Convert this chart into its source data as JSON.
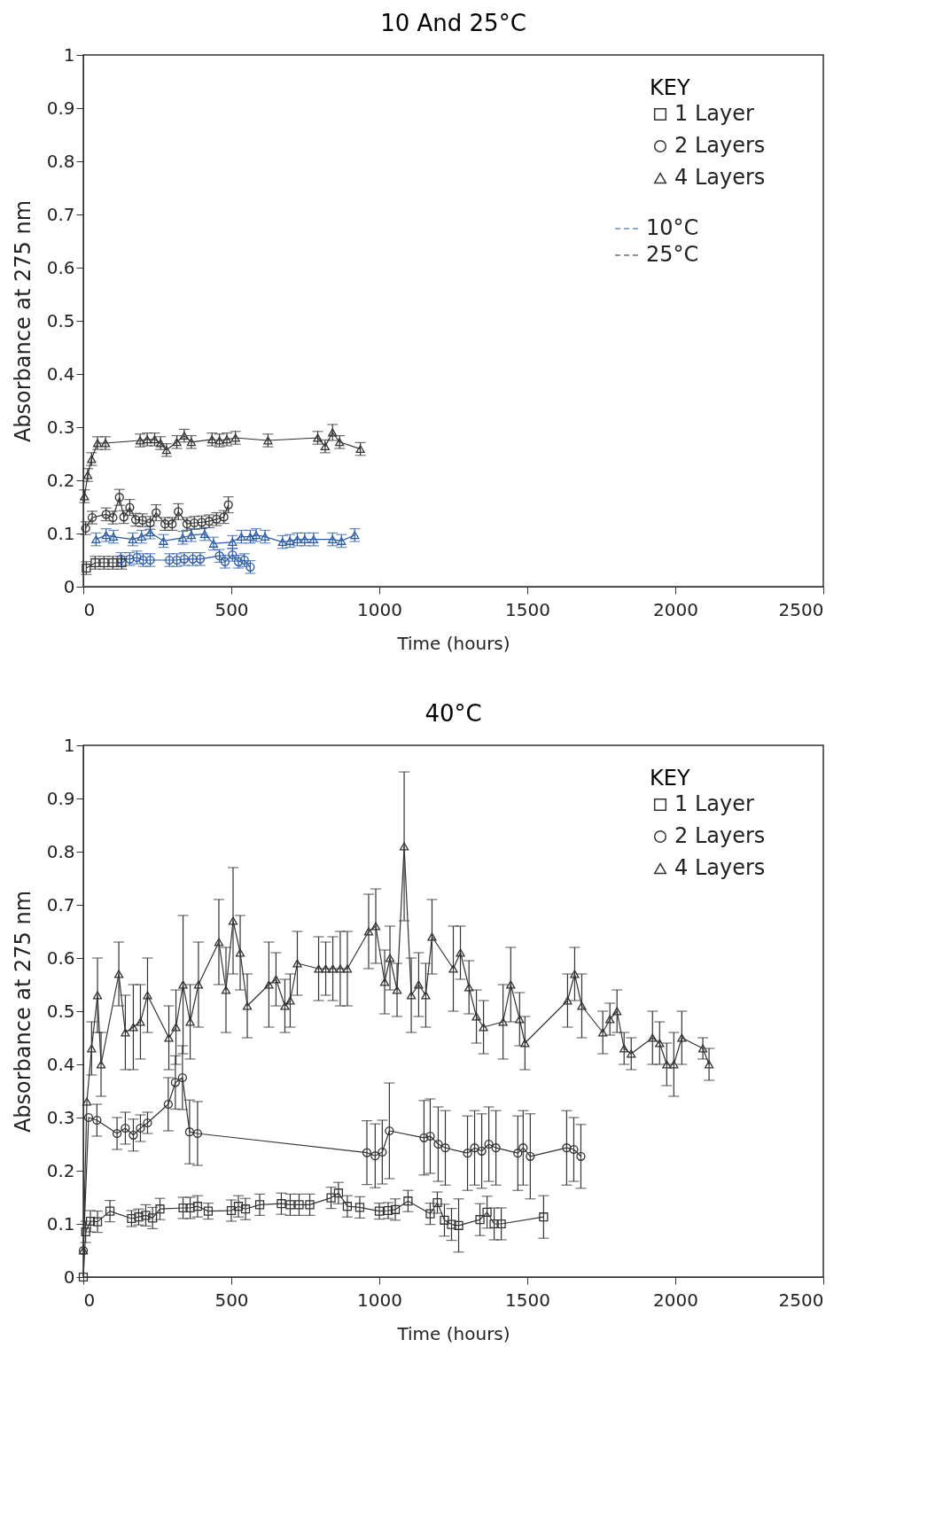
{
  "chart_data": [
    {
      "type": "line",
      "title": "10 And 25°C",
      "xlabel": "Time (hours)",
      "ylabel": "Absorbance at 275 nm",
      "legend_title": "KEY",
      "legend": "top right",
      "annotations": [
        "10°C",
        "25°C"
      ],
      "xlim": [
        0,
        2500
      ],
      "xticks": [
        0,
        500,
        1000,
        1500,
        2000,
        2500
      ],
      "ylim": [
        0,
        1
      ],
      "yticks": [
        0,
        0.1,
        0.2,
        0.3,
        0.4,
        0.5,
        0.6,
        0.7,
        0.8,
        0.9,
        1
      ],
      "grid": false,
      "line_style": "solid",
      "series": [
        {
          "color": "#2b5ca8",
          "marker": "circle",
          "x": [
            127,
            157,
            181,
            202,
            226,
            291,
            316,
            341,
            370,
            395,
            460,
            479,
            504,
            524,
            544,
            564
          ],
          "values": [
            0.052,
            0.052,
            0.055,
            0.05,
            0.05,
            0.05,
            0.05,
            0.052,
            0.052,
            0.052,
            0.058,
            0.047,
            0.06,
            0.047,
            0.05,
            0.037
          ],
          "errors": [
            0.012,
            0.012,
            0.012,
            0.012,
            0.012,
            0.012,
            0.012,
            0.012,
            0.012,
            0.012,
            0.012,
            0.012,
            0.012,
            0.012,
            0.012,
            0.012
          ]
        },
        {
          "color": "#2b5ca8",
          "marker": "triangle",
          "x": [
            43,
            77,
            102,
            167,
            197,
            226,
            271,
            336,
            365,
            410,
            440,
            504,
            534,
            564,
            584,
            614,
            673,
            698,
            723,
            748,
            778,
            842,
            872,
            917
          ],
          "values": [
            0.089,
            0.097,
            0.094,
            0.089,
            0.094,
            0.102,
            0.086,
            0.092,
            0.097,
            0.099,
            0.081,
            0.084,
            0.094,
            0.094,
            0.097,
            0.094,
            0.084,
            0.086,
            0.089,
            0.089,
            0.089,
            0.089,
            0.086,
            0.097
          ],
          "errors": [
            0.012,
            0.012,
            0.012,
            0.012,
            0.012,
            0.012,
            0.012,
            0.012,
            0.012,
            0.012,
            0.012,
            0.012,
            0.012,
            0.012,
            0.012,
            0.012,
            0.012,
            0.012,
            0.012,
            0.012,
            0.012,
            0.012,
            0.012,
            0.012
          ]
        },
        {
          "name": "1 Layer",
          "color": "#333333",
          "marker": "square",
          "x": [
            10,
            40,
            70,
            100,
            130
          ],
          "values": [
            0.035,
            0.045,
            0.045,
            0.045,
            0.045
          ],
          "errors": [
            0.012,
            0.012,
            0.012,
            0.012,
            0.012
          ]
        },
        {
          "name": "2 Layers",
          "color": "#333333",
          "marker": "circle",
          "x": [
            8,
            30,
            77,
            100,
            122,
            137,
            157,
            177,
            200,
            226,
            246,
            276,
            300,
            321,
            350,
            375,
            400,
            425,
            450,
            475,
            490
          ],
          "values": [
            0.11,
            0.13,
            0.136,
            0.13,
            0.168,
            0.131,
            0.149,
            0.126,
            0.125,
            0.12,
            0.139,
            0.118,
            0.118,
            0.141,
            0.118,
            0.12,
            0.121,
            0.123,
            0.127,
            0.131,
            0.154
          ],
          "errors": [
            0.012,
            0.012,
            0.012,
            0.012,
            0.015,
            0.012,
            0.015,
            0.012,
            0.012,
            0.012,
            0.015,
            0.012,
            0.012,
            0.015,
            0.012,
            0.012,
            0.012,
            0.012,
            0.012,
            0.012,
            0.015
          ]
        },
        {
          "name": "4 Layers",
          "color": "#333333",
          "marker": "triangle",
          "x": [
            4,
            15,
            28,
            48,
            75,
            192,
            216,
            241,
            261,
            281,
            316,
            341,
            365,
            435,
            460,
            485,
            514,
            624,
            792,
            817,
            842,
            866,
            936
          ],
          "values": [
            0.17,
            0.21,
            0.24,
            0.27,
            0.27,
            0.275,
            0.277,
            0.277,
            0.27,
            0.257,
            0.272,
            0.284,
            0.272,
            0.277,
            0.275,
            0.277,
            0.28,
            0.275,
            0.28,
            0.264,
            0.29,
            0.272,
            0.259
          ],
          "errors": [
            0.012,
            0.012,
            0.012,
            0.012,
            0.012,
            0.012,
            0.012,
            0.012,
            0.012,
            0.012,
            0.012,
            0.012,
            0.012,
            0.012,
            0.012,
            0.012,
            0.012,
            0.012,
            0.012,
            0.012,
            0.015,
            0.012,
            0.012
          ]
        }
      ]
    },
    {
      "type": "line",
      "title": "40°C",
      "xlabel": "Time (hours)",
      "ylabel": "Absorbance at 275 nm",
      "legend_title": "KEY",
      "legend": "top right",
      "xlim": [
        0,
        2500
      ],
      "xticks": [
        0,
        500,
        1000,
        1500,
        2000,
        2500
      ],
      "ylim": [
        0,
        1
      ],
      "yticks": [
        0,
        0.1,
        0.2,
        0.3,
        0.4,
        0.5,
        0.6,
        0.7,
        0.8,
        0.9,
        1
      ],
      "grid": false,
      "line_style": "solid",
      "series": [
        {
          "name": "1 Layer",
          "color": "#333333",
          "marker": "square",
          "x": [
            0,
            8,
            24,
            48,
            90,
            163,
            187,
            211,
            234,
            259,
            337,
            361,
            386,
            422,
            500,
            524,
            548,
            596,
            669,
            699,
            729,
            765,
            837,
            862,
            892,
            934,
            1000,
            1030,
            1054,
            1097,
            1172,
            1196,
            1220,
            1244,
            1268,
            1340,
            1364,
            1388,
            1412,
            1555
          ],
          "values": [
            0.0,
            0.085,
            0.105,
            0.104,
            0.124,
            0.11,
            0.113,
            0.116,
            0.111,
            0.128,
            0.13,
            0.13,
            0.133,
            0.124,
            0.125,
            0.133,
            0.128,
            0.136,
            0.138,
            0.136,
            0.136,
            0.136,
            0.149,
            0.158,
            0.133,
            0.131,
            0.124,
            0.125,
            0.127,
            0.143,
            0.119,
            0.14,
            0.107,
            0.099,
            0.097,
            0.108,
            0.122,
            0.1,
            0.1,
            0.113
          ],
          "errors": [
            null,
            0.02,
            0.02,
            0.02,
            0.02,
            0.015,
            0.015,
            0.02,
            0.02,
            0.02,
            0.02,
            0.02,
            0.02,
            0.015,
            0.02,
            0.02,
            0.02,
            0.02,
            0.02,
            0.02,
            0.02,
            0.02,
            0.02,
            0.02,
            0.02,
            0.02,
            0.015,
            0.015,
            0.02,
            0.02,
            0.02,
            0.02,
            0.03,
            0.03,
            0.05,
            0.03,
            0.03,
            0.03,
            0.03,
            0.04
          ]
        },
        {
          "name": "2 Layers",
          "color": "#333333",
          "marker": "circle",
          "x": [
            0,
            18,
            46,
            114,
            142,
            169,
            193,
            217,
            287,
            311,
            335,
            359,
            386,
            958,
            986,
            1010,
            1034,
            1151,
            1172,
            1199,
            1223,
            1298,
            1322,
            1346,
            1370,
            1394,
            1468,
            1486,
            1510,
            1633,
            1657,
            1681
          ],
          "values": [
            0.05,
            0.3,
            0.295,
            0.27,
            0.28,
            0.267,
            0.28,
            0.29,
            0.325,
            0.366,
            0.375,
            0.273,
            0.27,
            0.234,
            0.228,
            0.235,
            0.275,
            0.262,
            0.265,
            0.25,
            0.243,
            0.233,
            0.243,
            0.237,
            0.25,
            0.243,
            0.233,
            0.243,
            0.227,
            0.243,
            0.24,
            0.227
          ],
          "errors": [
            null,
            null,
            0.03,
            0.03,
            0.03,
            0.03,
            0.025,
            0.02,
            0.05,
            0.05,
            0.06,
            0.06,
            0.06,
            0.06,
            0.06,
            0.06,
            0.09,
            0.07,
            0.07,
            0.07,
            0.07,
            0.07,
            0.07,
            0.07,
            0.07,
            0.07,
            0.07,
            0.07,
            0.08,
            0.07,
            0.06,
            0.06
          ]
        },
        {
          "name": "4 Layers",
          "color": "#333333",
          "marker": "triangle",
          "x": [
            0,
            12,
            28,
            48,
            60,
            120,
            142,
            169,
            193,
            217,
            289,
            313,
            337,
            361,
            389,
            458,
            482,
            506,
            530,
            554,
            627,
            651,
            681,
            699,
            723,
            795,
            819,
            843,
            868,
            892,
            964,
            988,
            1018,
            1036,
            1060,
            1084,
            1108,
            1133,
            1157,
            1178,
            1250,
            1274,
            1303,
            1328,
            1352,
            1418,
            1444,
            1474,
            1492,
            1636,
            1660,
            1684,
            1755,
            1779,
            1803,
            1827,
            1851,
            1923,
            1947,
            1971,
            1995,
            2022,
            2093,
            2114
          ],
          "values": [
            0.05,
            0.33,
            0.43,
            0.53,
            0.4,
            0.57,
            0.46,
            0.47,
            0.48,
            0.53,
            0.45,
            0.47,
            0.55,
            0.48,
            0.55,
            0.63,
            0.54,
            0.67,
            0.61,
            0.51,
            0.55,
            0.56,
            0.51,
            0.52,
            0.59,
            0.58,
            0.58,
            0.58,
            0.58,
            0.58,
            0.65,
            0.66,
            0.555,
            0.6,
            0.54,
            0.81,
            0.53,
            0.55,
            0.53,
            0.64,
            0.58,
            0.61,
            0.545,
            0.49,
            0.47,
            0.48,
            0.55,
            0.485,
            0.44,
            0.52,
            0.57,
            0.51,
            0.46,
            0.485,
            0.5,
            0.43,
            0.42,
            0.45,
            0.44,
            0.4,
            0.4,
            0.45,
            0.43,
            0.4
          ],
          "errors": [
            null,
            null,
            0.05,
            0.07,
            0.06,
            0.06,
            0.07,
            0.08,
            0.07,
            0.07,
            0.06,
            0.07,
            0.13,
            0.07,
            0.08,
            0.08,
            0.08,
            0.1,
            0.07,
            0.06,
            0.08,
            0.05,
            0.05,
            0.05,
            0.06,
            0.06,
            0.05,
            0.06,
            0.07,
            0.07,
            0.07,
            0.07,
            0.06,
            0.06,
            0.05,
            0.14,
            0.07,
            0.06,
            0.06,
            0.07,
            0.08,
            0.05,
            0.05,
            0.05,
            0.05,
            0.07,
            0.07,
            0.05,
            0.05,
            0.05,
            0.05,
            0.06,
            0.04,
            0.03,
            0.04,
            0.03,
            0.03,
            0.05,
            0.04,
            0.04,
            0.06,
            0.05,
            0.02,
            0.03
          ]
        }
      ]
    }
  ]
}
